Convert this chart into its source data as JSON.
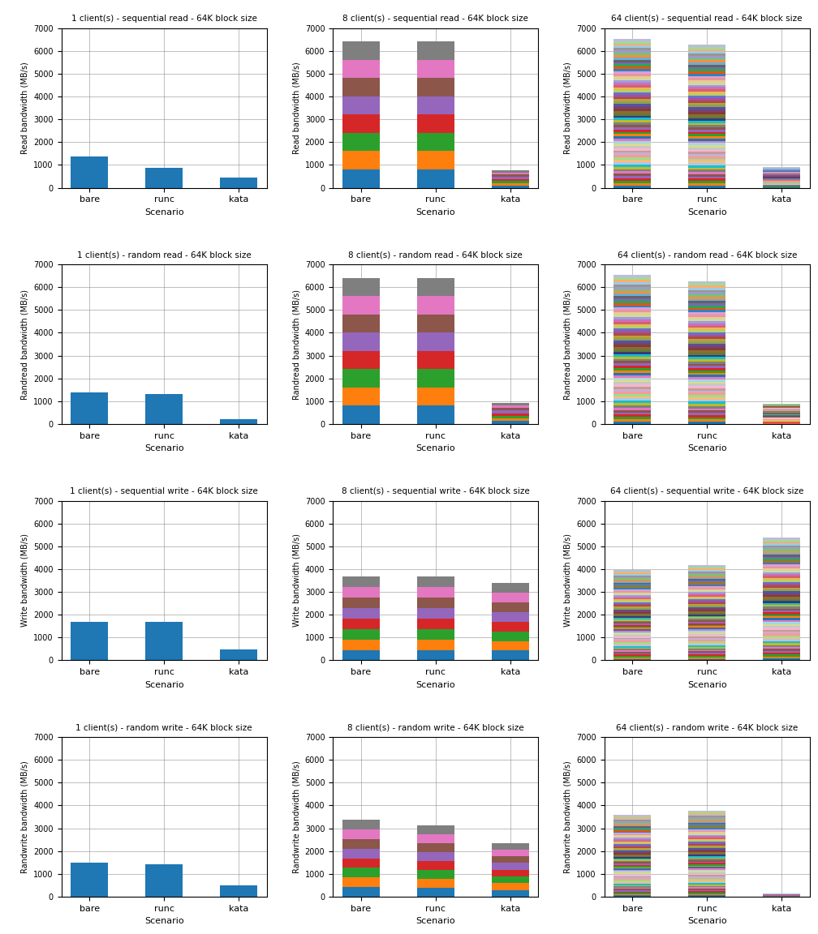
{
  "titles": [
    [
      "1 client(s) - sequential read - 64K block size",
      "8 client(s) - sequential read - 64K block size",
      "64 client(s) - sequential read - 64K block size"
    ],
    [
      "1 client(s) - random read - 64K block size",
      "8 client(s) - random read - 64K block size",
      "64 client(s) - random read - 64K block size"
    ],
    [
      "1 client(s) - sequential write - 64K block size",
      "8 client(s) - sequential write - 64K block size",
      "64 client(s) - sequential write - 64K block size"
    ],
    [
      "1 client(s) - random write - 64K block size",
      "8 client(s) - random write - 64K block size",
      "64 client(s) - random write - 64K block size"
    ]
  ],
  "ylabels": [
    "Read bandwidth (MB/s)",
    "Randread bandwidth (MB/s)",
    "Write bandwidth (MB/s)",
    "Randwrite bandwidth (MB/s)"
  ],
  "xlabel": "Scenario",
  "scenarios": [
    "bare",
    "runc",
    "kata"
  ],
  "ylim": [
    0,
    7000
  ],
  "yticks": [
    0,
    1000,
    2000,
    3000,
    4000,
    5000,
    6000,
    7000
  ],
  "n_clients": [
    1,
    8,
    64
  ],
  "data": {
    "seq_read": {
      "1": {
        "bare": [
          1380
        ],
        "runc": [
          870
        ],
        "kata": [
          440
        ]
      },
      "8": {
        "bare": [
          800,
          800,
          800,
          800,
          800,
          800,
          800,
          800
        ],
        "runc": [
          800,
          800,
          800,
          800,
          800,
          800,
          800,
          810
        ],
        "kata": [
          100,
          95,
          90,
          95,
          100,
          100,
          95,
          90
        ]
      },
      "64": {
        "bare": [
          102,
          102,
          102,
          102,
          102,
          102,
          102,
          102,
          102,
          102,
          102,
          102,
          102,
          102,
          102,
          102,
          102,
          102,
          102,
          102,
          102,
          102,
          102,
          102,
          102,
          102,
          102,
          102,
          102,
          102,
          102,
          102,
          102,
          102,
          102,
          102,
          102,
          102,
          102,
          102,
          102,
          102,
          102,
          102,
          102,
          102,
          102,
          102,
          102,
          102,
          102,
          102,
          102,
          102,
          102,
          102,
          102,
          102,
          102,
          102,
          102,
          102,
          102,
          102
        ],
        "runc": [
          98,
          98,
          98,
          98,
          98,
          98,
          98,
          98,
          98,
          98,
          98,
          98,
          98,
          98,
          98,
          98,
          98,
          98,
          98,
          98,
          98,
          98,
          98,
          98,
          98,
          98,
          98,
          98,
          98,
          98,
          98,
          98,
          98,
          98,
          98,
          98,
          98,
          98,
          98,
          98,
          98,
          98,
          98,
          98,
          98,
          98,
          98,
          98,
          98,
          98,
          98,
          98,
          98,
          98,
          98,
          98,
          98,
          98,
          98,
          98,
          98,
          98,
          98,
          98
        ],
        "kata": [
          14,
          14,
          14,
          14,
          14,
          14,
          14,
          14,
          14,
          14,
          14,
          14,
          14,
          14,
          14,
          14,
          14,
          14,
          14,
          14,
          14,
          14,
          14,
          14,
          14,
          14,
          14,
          14,
          14,
          14,
          14,
          14,
          14,
          14,
          14,
          14,
          14,
          14,
          14,
          14,
          14,
          14,
          14,
          14,
          14,
          14,
          14,
          14,
          14,
          14,
          14,
          14,
          14,
          14,
          14,
          14,
          14,
          14,
          14,
          14,
          14,
          14,
          14,
          14
        ]
      }
    },
    "rand_read": {
      "1": {
        "bare": [
          1380
        ],
        "runc": [
          1300
        ],
        "kata": [
          200
        ]
      },
      "8": {
        "bare": [
          800,
          800,
          800,
          800,
          800,
          800,
          800,
          800
        ],
        "runc": [
          800,
          800,
          800,
          800,
          800,
          800,
          800,
          800
        ],
        "kata": [
          125,
          120,
          115,
          115,
          120,
          120,
          115,
          110
        ]
      },
      "64": {
        "bare": [
          102,
          102,
          102,
          102,
          102,
          102,
          102,
          102,
          102,
          102,
          102,
          102,
          102,
          102,
          102,
          102,
          102,
          102,
          102,
          102,
          102,
          102,
          102,
          102,
          102,
          102,
          102,
          102,
          102,
          102,
          102,
          102,
          102,
          102,
          102,
          102,
          102,
          102,
          102,
          102,
          102,
          102,
          102,
          102,
          102,
          102,
          102,
          102,
          102,
          102,
          102,
          102,
          102,
          102,
          102,
          102,
          102,
          102,
          102,
          102,
          102,
          102,
          102,
          102
        ],
        "runc": [
          98,
          98,
          98,
          98,
          98,
          98,
          98,
          98,
          98,
          98,
          98,
          98,
          98,
          98,
          98,
          98,
          98,
          98,
          98,
          98,
          98,
          98,
          98,
          98,
          98,
          98,
          98,
          98,
          98,
          98,
          98,
          98,
          98,
          98,
          98,
          98,
          98,
          98,
          98,
          98,
          98,
          98,
          98,
          98,
          98,
          98,
          98,
          98,
          98,
          98,
          98,
          98,
          98,
          98,
          98,
          98,
          98,
          98,
          98,
          98,
          98,
          98,
          98,
          98
        ],
        "kata": [
          14,
          14,
          14,
          14,
          14,
          14,
          14,
          14,
          14,
          14,
          14,
          14,
          14,
          14,
          14,
          14,
          14,
          14,
          14,
          14,
          14,
          14,
          14,
          14,
          14,
          14,
          14,
          14,
          14,
          14,
          14,
          14,
          14,
          14,
          14,
          14,
          14,
          14,
          14,
          14,
          14,
          14,
          14,
          14,
          14,
          14,
          14,
          14,
          14,
          14,
          14,
          14,
          14,
          14,
          14,
          14,
          14,
          14,
          14,
          14,
          14,
          14,
          14,
          14
        ]
      }
    },
    "seq_write": {
      "1": {
        "bare": [
          1700
        ],
        "runc": [
          1680
        ],
        "kata": [
          470
        ]
      },
      "8": {
        "bare": [
          460,
          460,
          460,
          460,
          460,
          460,
          460,
          460
        ],
        "runc": [
          460,
          460,
          460,
          460,
          460,
          460,
          460,
          460
        ],
        "kata": [
          425,
          425,
          425,
          425,
          425,
          425,
          425,
          430
        ]
      },
      "64": {
        "bare": [
          62,
          62,
          62,
          62,
          62,
          62,
          62,
          62,
          62,
          62,
          62,
          62,
          62,
          62,
          62,
          62,
          62,
          62,
          62,
          62,
          62,
          62,
          62,
          62,
          62,
          62,
          62,
          62,
          62,
          62,
          62,
          62,
          62,
          62,
          62,
          62,
          62,
          62,
          62,
          62,
          62,
          62,
          62,
          62,
          62,
          62,
          62,
          62,
          62,
          62,
          62,
          62,
          62,
          62,
          62,
          62,
          62,
          62,
          62,
          62,
          62,
          62,
          62,
          62
        ],
        "runc": [
          65,
          65,
          65,
          65,
          65,
          65,
          65,
          65,
          65,
          65,
          65,
          65,
          65,
          65,
          65,
          65,
          65,
          65,
          65,
          65,
          65,
          65,
          65,
          65,
          65,
          65,
          65,
          65,
          65,
          65,
          65,
          65,
          65,
          65,
          65,
          65,
          65,
          65,
          65,
          65,
          65,
          65,
          65,
          65,
          65,
          65,
          65,
          65,
          65,
          65,
          65,
          65,
          65,
          65,
          65,
          65,
          65,
          65,
          65,
          65,
          65,
          65,
          65,
          65
        ],
        "kata": [
          84,
          84,
          84,
          84,
          84,
          84,
          84,
          84,
          84,
          84,
          84,
          84,
          84,
          84,
          84,
          84,
          84,
          84,
          84,
          84,
          84,
          84,
          84,
          84,
          84,
          84,
          84,
          84,
          84,
          84,
          84,
          84,
          84,
          84,
          84,
          84,
          84,
          84,
          84,
          84,
          84,
          84,
          84,
          84,
          84,
          84,
          84,
          84,
          84,
          84,
          84,
          84,
          84,
          84,
          84,
          84,
          84,
          84,
          84,
          84,
          84,
          84,
          84,
          84
        ]
      }
    },
    "rand_write": {
      "1": {
        "bare": [
          1480
        ],
        "runc": [
          1420
        ],
        "kata": [
          480
        ]
      },
      "8": {
        "bare": [
          420,
          420,
          420,
          420,
          420,
          420,
          420,
          420
        ],
        "runc": [
          390,
          390,
          390,
          390,
          390,
          390,
          390,
          390
        ],
        "kata": [
          295,
          295,
          295,
          295,
          295,
          295,
          295,
          295
        ]
      },
      "64": {
        "bare": [
          56,
          56,
          56,
          56,
          56,
          56,
          56,
          56,
          56,
          56,
          56,
          56,
          56,
          56,
          56,
          56,
          56,
          56,
          56,
          56,
          56,
          56,
          56,
          56,
          56,
          56,
          56,
          56,
          56,
          56,
          56,
          56,
          56,
          56,
          56,
          56,
          56,
          56,
          56,
          56,
          56,
          56,
          56,
          56,
          56,
          56,
          56,
          56,
          56,
          56,
          56,
          56,
          56,
          56,
          56,
          56,
          56,
          56,
          56,
          56,
          56,
          56,
          56,
          56
        ],
        "runc": [
          59,
          59,
          59,
          59,
          59,
          59,
          59,
          59,
          59,
          59,
          59,
          59,
          59,
          59,
          59,
          59,
          59,
          59,
          59,
          59,
          59,
          59,
          59,
          59,
          59,
          59,
          59,
          59,
          59,
          59,
          59,
          59,
          59,
          59,
          59,
          59,
          59,
          59,
          59,
          59,
          59,
          59,
          59,
          59,
          59,
          59,
          59,
          59,
          59,
          59,
          59,
          59,
          59,
          59,
          59,
          59,
          59,
          59,
          59,
          59,
          59,
          59,
          59,
          59
        ],
        "kata": [
          2,
          2,
          2,
          2,
          2,
          2,
          2,
          2,
          2,
          2,
          2,
          2,
          2,
          2,
          2,
          2,
          2,
          2,
          2,
          2,
          2,
          2,
          2,
          2,
          2,
          2,
          2,
          2,
          2,
          2,
          2,
          2,
          2,
          2,
          2,
          2,
          2,
          2,
          2,
          2,
          2,
          2,
          2,
          2,
          2,
          2,
          2,
          2,
          2,
          2,
          2,
          2,
          2,
          2,
          2,
          2,
          2,
          2,
          2,
          2,
          2,
          2,
          2,
          2
        ]
      }
    }
  }
}
